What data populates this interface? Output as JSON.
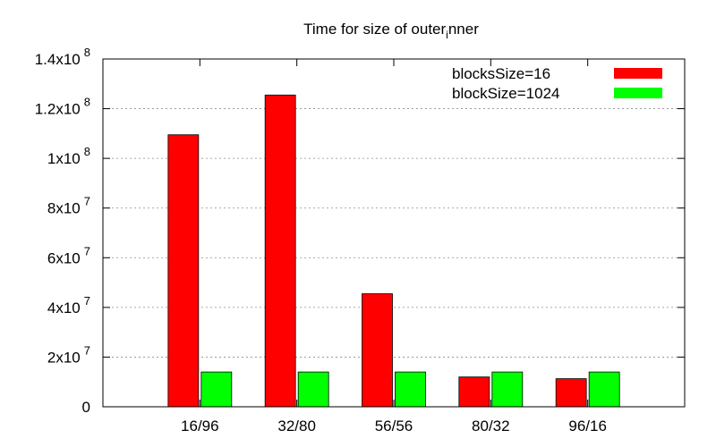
{
  "chart_data": {
    "type": "bar",
    "title": "Time for size of outer",
    "title_suffix_sub": "i",
    "title_suffix": "nner",
    "xlabel": "",
    "ylabel": "",
    "categories": [
      "16/96",
      "32/80",
      "56/56",
      "80/32",
      "96/16"
    ],
    "series": [
      {
        "name": "blocksSize=16",
        "color": "#ff0000",
        "values": [
          109500000,
          125500000,
          45500000,
          12000000,
          11300000
        ]
      },
      {
        "name": "blockSize=1024",
        "color": "#00ff00",
        "values": [
          14000000,
          14000000,
          14000000,
          14000000,
          14000000
        ]
      }
    ],
    "ylim": [
      0,
      140000000
    ],
    "y_ticks": [
      {
        "value": 0,
        "mantissa": "0",
        "exp": ""
      },
      {
        "value": 20000000,
        "mantissa": "2x10",
        "exp": "7"
      },
      {
        "value": 40000000,
        "mantissa": "4x10",
        "exp": "7"
      },
      {
        "value": 60000000,
        "mantissa": "6x10",
        "exp": "7"
      },
      {
        "value": 80000000,
        "mantissa": "8x10",
        "exp": "7"
      },
      {
        "value": 100000000,
        "mantissa": "1x10",
        "exp": "8"
      },
      {
        "value": 120000000,
        "mantissa": "1.2x10",
        "exp": "8"
      },
      {
        "value": 140000000,
        "mantissa": "1.4x10",
        "exp": "8"
      }
    ],
    "grid": true,
    "legend_position": "top-right"
  }
}
